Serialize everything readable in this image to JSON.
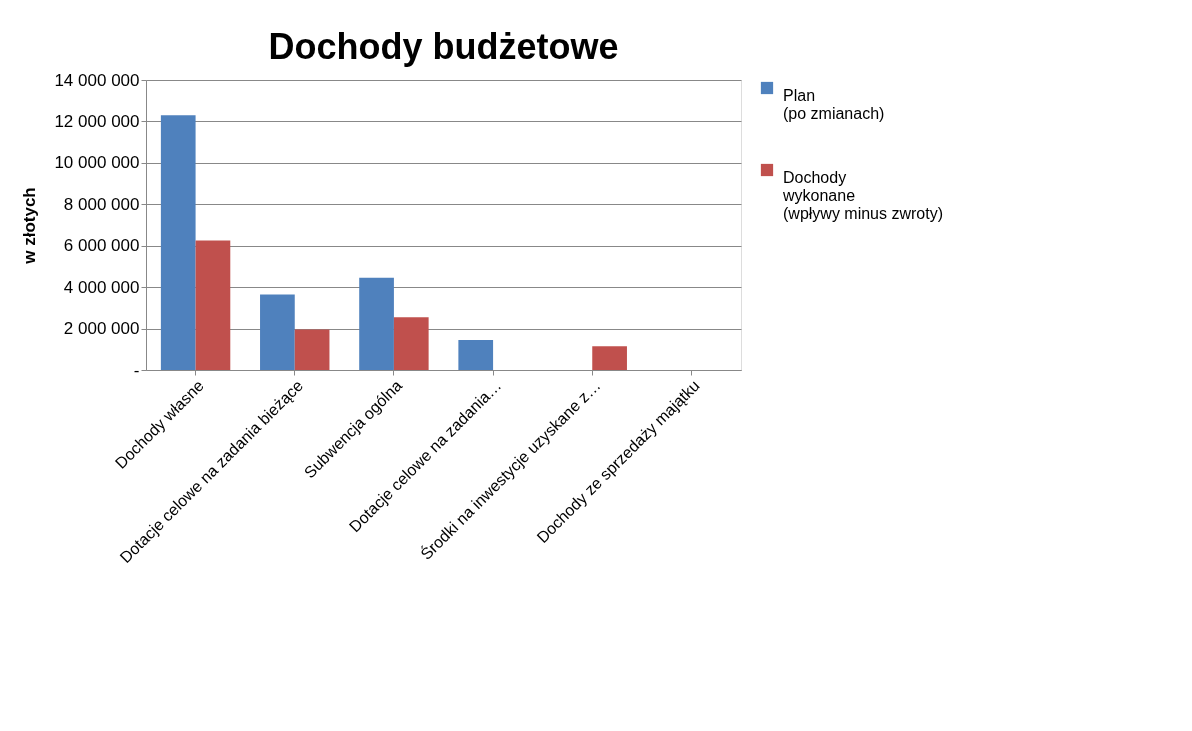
{
  "chart_data": {
    "type": "bar",
    "title": "Dochody budżetowe",
    "ylabel": "w złotych",
    "categories": [
      "Dochody własne",
      "Dotacje celowe na zadania bieżące",
      "Subwencja ogólna",
      "Dotacje celowe na zadania…",
      "Środki na inwestycje uzyskane z…",
      "Dochody ze sprzedaży majątku"
    ],
    "series": [
      {
        "name": "Plan\n(po zmianach)",
        "color": "#4f81bd",
        "values": [
          12300000,
          3650000,
          4450000,
          1450000,
          0,
          0
        ]
      },
      {
        "name": "Dochody\nwykonane\n(wpływy minus zwroty)",
        "color": "#c0504d",
        "values": [
          6250000,
          1950000,
          2550000,
          0,
          1150000,
          0
        ]
      }
    ],
    "ylim": [
      0,
      14000000
    ],
    "yticks": [
      {
        "value": 0,
        "label": "-"
      },
      {
        "value": 2000000,
        "label": "2 000 000"
      },
      {
        "value": 4000000,
        "label": "4 000 000"
      },
      {
        "value": 6000000,
        "label": "6 000 000"
      },
      {
        "value": 8000000,
        "label": "8 000 000"
      },
      {
        "value": 10000000,
        "label": "10 000 000"
      },
      {
        "value": 12000000,
        "label": "12 000 000"
      },
      {
        "value": 14000000,
        "label": "14 000 000"
      }
    ],
    "grid": "y",
    "legend": "right"
  }
}
